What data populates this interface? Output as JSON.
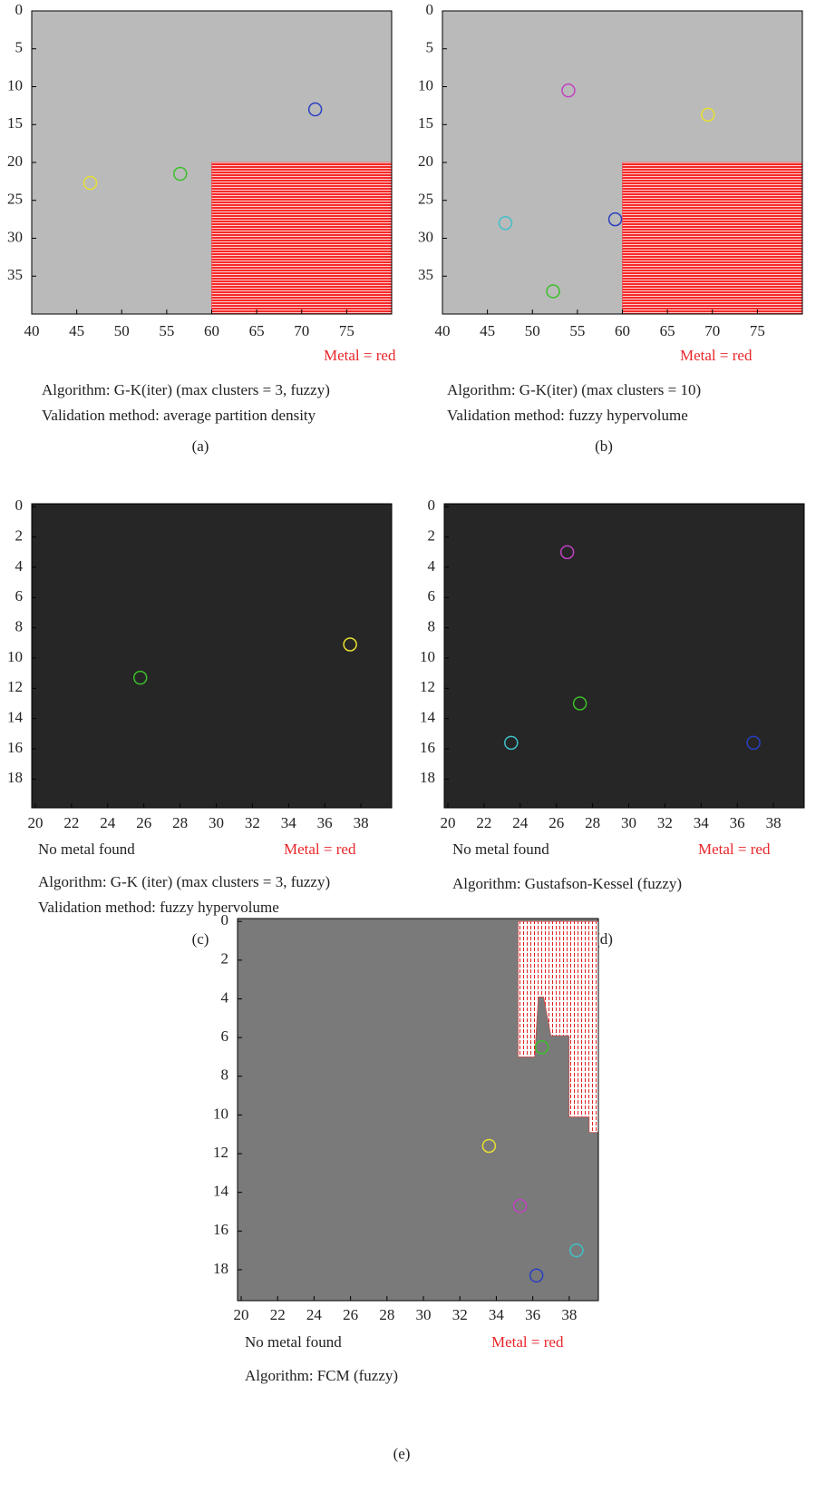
{
  "chart_data": [
    {
      "type": "image",
      "label": "(a)",
      "metal_text": "Metal = red",
      "caption": [
        "Algorithm: G-K(iter) (max clusters = 3, fuzzy)",
        "Validation method: average partition density"
      ],
      "xlim": [
        40,
        80
      ],
      "ylim": [
        0,
        40
      ],
      "xticks": [
        40,
        45,
        50,
        55,
        60,
        65,
        70,
        75
      ],
      "yticks": [
        0,
        5,
        10,
        15,
        20,
        25,
        30,
        35
      ],
      "background": "#bababa",
      "metal_color": "#f52a2a",
      "metal_region": {
        "x": [
          60,
          80,
          80,
          60
        ],
        "y": [
          20,
          20,
          40,
          40
        ]
      },
      "centers": {
        "x": [
          71.5,
          56.5,
          46.5
        ],
        "y": [
          13,
          21.5,
          22.7
        ],
        "colors": [
          "#2a3fc0",
          "#3cbf2a",
          "#e8e030"
        ]
      }
    },
    {
      "type": "image",
      "label": "(b)",
      "metal_text": "Metal = red",
      "caption": [
        "Algorithm: G-K(iter) (max clusters = 10)",
        "Validation method: fuzzy hypervolume"
      ],
      "xlim": [
        40,
        80
      ],
      "ylim": [
        0,
        40
      ],
      "xticks": [
        40,
        45,
        50,
        55,
        60,
        65,
        70,
        75
      ],
      "yticks": [
        0,
        5,
        10,
        15,
        20,
        25,
        30,
        35
      ],
      "background": "#bababa",
      "metal_color": "#f52a2a",
      "metal_region": {
        "x": [
          60,
          80,
          80,
          60
        ],
        "y": [
          20,
          20,
          40,
          40
        ]
      },
      "centers": {
        "x": [
          54,
          69.5,
          59.2,
          47,
          52.3
        ],
        "y": [
          10.5,
          13.7,
          27.5,
          28,
          37
        ],
        "colors": [
          "#c040c0",
          "#e8e030",
          "#2a3fc0",
          "#40c0c8",
          "#3cbf2a"
        ]
      }
    },
    {
      "type": "image",
      "label": "(c)",
      "metal_text": "Metal = red",
      "no_metal_text": "No metal found",
      "caption": [
        "Algorithm: G-K (iter) (max clusters = 3, fuzzy)",
        "Validation method: fuzzy hypervolume"
      ],
      "xlim": [
        19.8,
        39.7
      ],
      "ylim": [
        -0.2,
        19.9
      ],
      "xticks": [
        20,
        22,
        24,
        26,
        28,
        30,
        32,
        34,
        36,
        38
      ],
      "yticks": [
        0,
        2,
        4,
        6,
        8,
        10,
        12,
        14,
        16,
        18
      ],
      "background": "#262626",
      "centers": {
        "x": [
          25.8,
          37.4
        ],
        "y": [
          11.3,
          9.1
        ],
        "colors": [
          "#3cbf2a",
          "#e8e030"
        ]
      }
    },
    {
      "type": "image",
      "label": "(d)",
      "metal_text": "Metal = red",
      "no_metal_text": "No metal found",
      "caption": [
        "Algorithm: Gustafson-Kessel (fuzzy)"
      ],
      "xlim": [
        19.8,
        39.7
      ],
      "ylim": [
        -0.2,
        19.9
      ],
      "xticks": [
        20,
        22,
        24,
        26,
        28,
        30,
        32,
        34,
        36,
        38
      ],
      "yticks": [
        0,
        2,
        4,
        6,
        8,
        10,
        12,
        14,
        16,
        18
      ],
      "background": "#262626",
      "centers": {
        "x": [
          26.6,
          27.3,
          23.5,
          36.9
        ],
        "y": [
          3,
          13,
          15.6,
          15.6
        ],
        "colors": [
          "#c040c0",
          "#3cbf2a",
          "#40c0c8",
          "#2a3fc0"
        ]
      }
    },
    {
      "type": "image",
      "label": "(e)",
      "metal_text": "Metal = red",
      "no_metal_text": "No metal found",
      "caption": [
        "Algorithm: FCM (fuzzy)"
      ],
      "xlim": [
        19.8,
        39.6
      ],
      "ylim": [
        -0.15,
        19.6
      ],
      "xticks": [
        20,
        22,
        24,
        26,
        28,
        30,
        32,
        34,
        36,
        38
      ],
      "yticks": [
        0,
        2,
        4,
        6,
        8,
        10,
        12,
        14,
        16,
        18
      ],
      "background": "#7a7a7a",
      "metal_color": "#f52a2a",
      "metal_region": {
        "x": [
          35.2,
          39.6,
          39.6,
          39.1,
          39.1,
          38,
          38,
          37,
          36.6,
          36.3,
          36.1,
          35.2
        ],
        "y": [
          0,
          0,
          10.9,
          10.9,
          10.1,
          10.1,
          5.9,
          5.9,
          3.9,
          3.9,
          7,
          7
        ]
      },
      "centers": {
        "x": [
          36.5,
          33.6,
          35.3,
          38.4,
          36.2
        ],
        "y": [
          6.5,
          11.6,
          14.7,
          17,
          18.3
        ],
        "colors": [
          "#3cbf2a",
          "#e8e030",
          "#c040c0",
          "#40c0c8",
          "#2a3fc0"
        ]
      }
    }
  ]
}
